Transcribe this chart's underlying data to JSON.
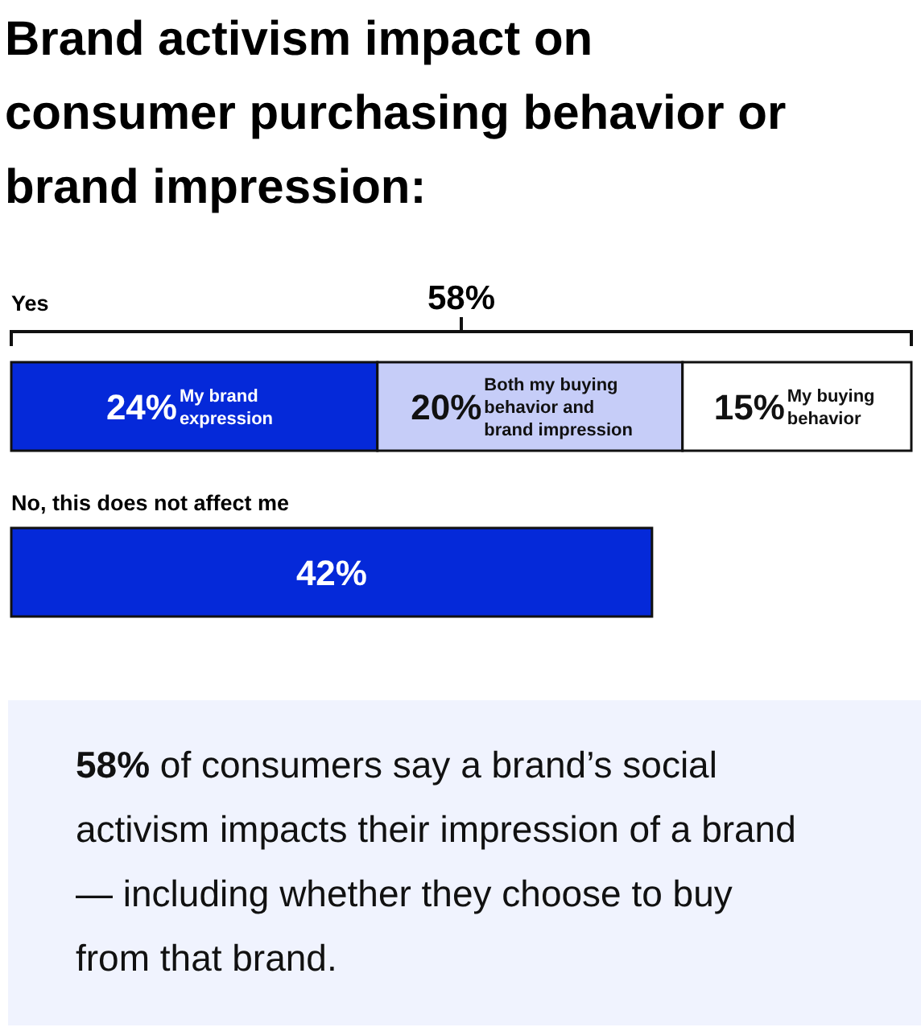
{
  "chart_data": {
    "type": "bar",
    "title": "Brand activism impact on consumer purchasing behavior or brand impression:",
    "orientation": "horizontal",
    "stacked": true,
    "categories": [
      "Yes",
      "No, this does not affect me"
    ],
    "series": [
      {
        "name": "My brand expression",
        "color": "#0529d9",
        "values": [
          24,
          42
        ],
        "value_labels": [
          "24%",
          "42%"
        ]
      },
      {
        "name": "Both my buying behavior and brand impression",
        "color": "#c6cdf8",
        "values": [
          20,
          null
        ],
        "value_labels": [
          "20%",
          null
        ]
      },
      {
        "name": "My buying behavior",
        "color": "#ffffff",
        "values": [
          15,
          null
        ],
        "value_labels": [
          "15%",
          null
        ]
      }
    ],
    "totals": [
      "58%",
      null
    ],
    "annotations": [
      "58% of consumers say a brand’s social activism impacts their impression of a brand — including whether they choose to buy from that brand."
    ]
  }
}
